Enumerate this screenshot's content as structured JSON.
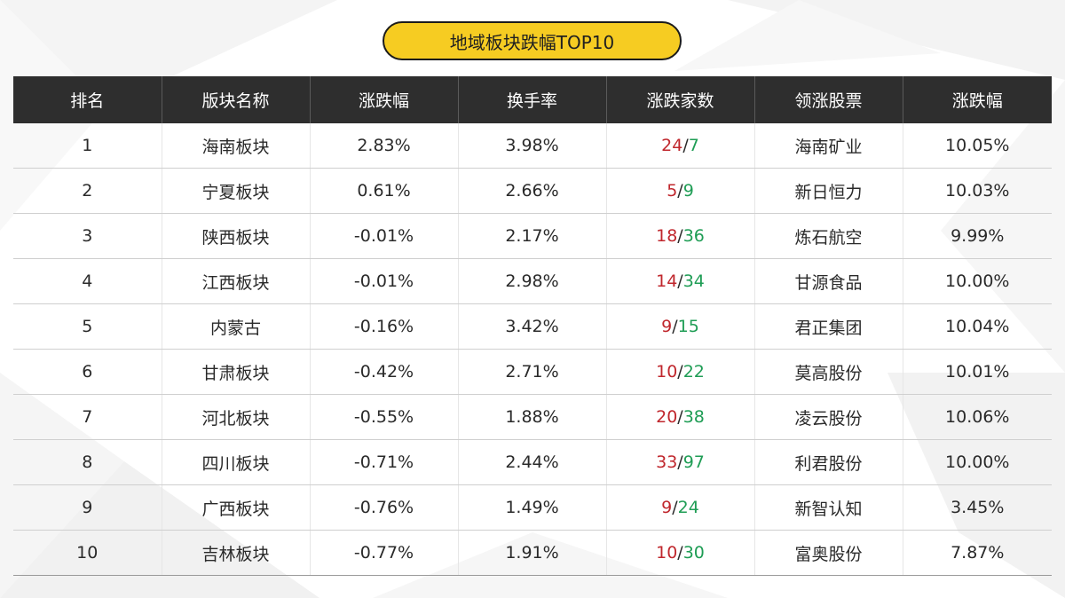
{
  "title": "地域板块跌幅TOP10",
  "colors": {
    "title_bg": "#f6cc22",
    "header_bg": "#2e2e2e",
    "up": "#c0272d",
    "down": "#1f9d55"
  },
  "table": {
    "headers": [
      "排名",
      "版块名称",
      "涨跌幅",
      "换手率",
      "涨跌家数",
      "领涨股票",
      "涨跌幅"
    ],
    "rows": [
      {
        "rank": "1",
        "name": "海南板块",
        "change": "2.83%",
        "change_dir": "up",
        "turnover": "3.98%",
        "adv": "24",
        "dec": "7",
        "leader": "海南矿业",
        "leader_change": "10.05%",
        "leader_dir": "up"
      },
      {
        "rank": "2",
        "name": "宁夏板块",
        "change": "0.61%",
        "change_dir": "up",
        "turnover": "2.66%",
        "adv": "5",
        "dec": "9",
        "leader": "新日恒力",
        "leader_change": "10.03%",
        "leader_dir": "up"
      },
      {
        "rank": "3",
        "name": "陕西板块",
        "change": "-0.01%",
        "change_dir": "down",
        "turnover": "2.17%",
        "adv": "18",
        "dec": "36",
        "leader": "炼石航空",
        "leader_change": "9.99%",
        "leader_dir": "up"
      },
      {
        "rank": "4",
        "name": "江西板块",
        "change": "-0.01%",
        "change_dir": "down",
        "turnover": "2.98%",
        "adv": "14",
        "dec": "34",
        "leader": "甘源食品",
        "leader_change": "10.00%",
        "leader_dir": "up"
      },
      {
        "rank": "5",
        "name": "内蒙古",
        "change": "-0.16%",
        "change_dir": "down",
        "turnover": "3.42%",
        "adv": "9",
        "dec": "15",
        "leader": "君正集团",
        "leader_change": "10.04%",
        "leader_dir": "up"
      },
      {
        "rank": "6",
        "name": "甘肃板块",
        "change": "-0.42%",
        "change_dir": "down",
        "turnover": "2.71%",
        "adv": "10",
        "dec": "22",
        "leader": "莫高股份",
        "leader_change": "10.01%",
        "leader_dir": "up"
      },
      {
        "rank": "7",
        "name": "河北板块",
        "change": "-0.55%",
        "change_dir": "down",
        "turnover": "1.88%",
        "adv": "20",
        "dec": "38",
        "leader": "凌云股份",
        "leader_change": "10.06%",
        "leader_dir": "up"
      },
      {
        "rank": "8",
        "name": "四川板块",
        "change": "-0.71%",
        "change_dir": "down",
        "turnover": "2.44%",
        "adv": "33",
        "dec": "97",
        "leader": "利君股份",
        "leader_change": "10.00%",
        "leader_dir": "up"
      },
      {
        "rank": "9",
        "name": "广西板块",
        "change": "-0.76%",
        "change_dir": "down",
        "turnover": "1.49%",
        "adv": "9",
        "dec": "24",
        "leader": "新智认知",
        "leader_change": "3.45%",
        "leader_dir": "up"
      },
      {
        "rank": "10",
        "name": "吉林板块",
        "change": "-0.77%",
        "change_dir": "down",
        "turnover": "1.91%",
        "adv": "10",
        "dec": "30",
        "leader": "富奥股份",
        "leader_change": "7.87%",
        "leader_dir": "up"
      }
    ]
  }
}
